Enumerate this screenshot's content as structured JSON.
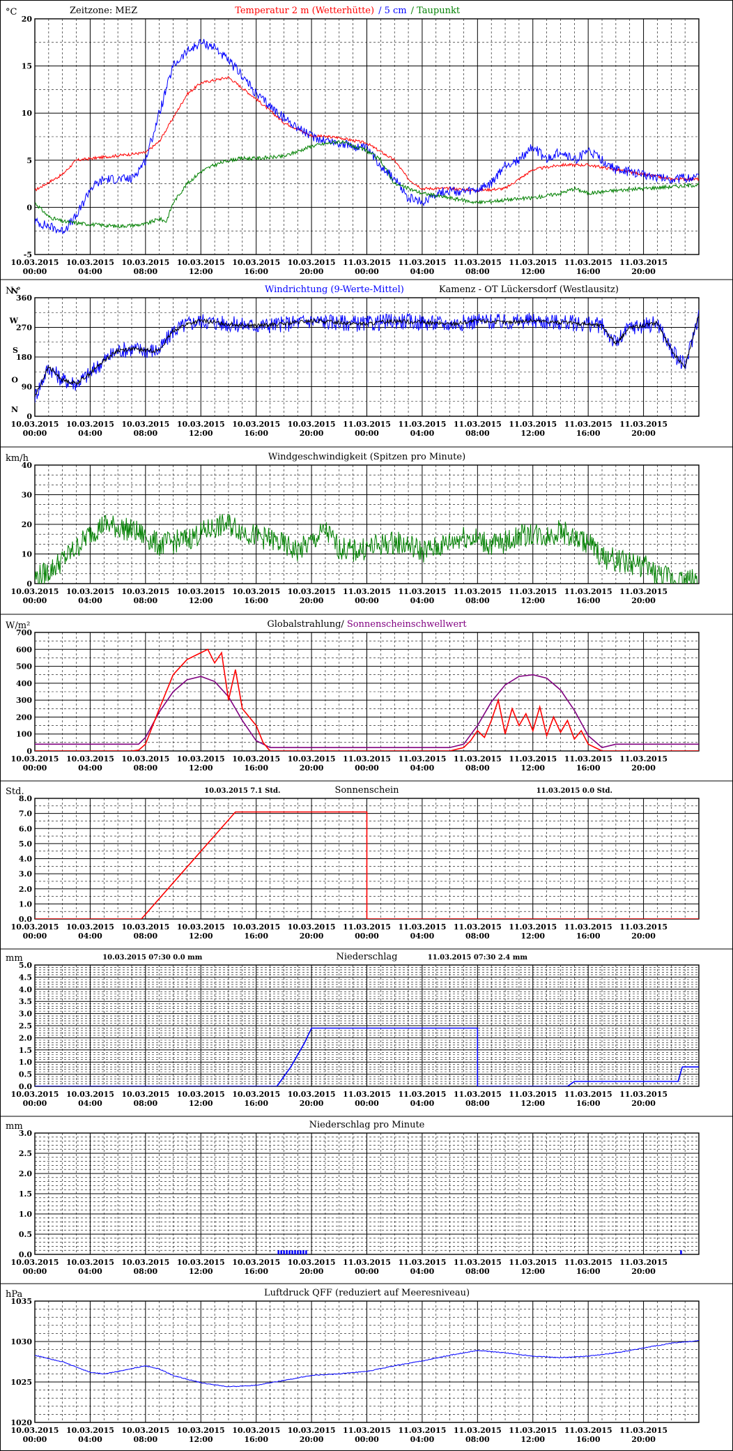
{
  "x_ticks": [
    {
      "date": "10.03.2015",
      "time": "00:00"
    },
    {
      "date": "10.03.2015",
      "time": "04:00"
    },
    {
      "date": "10.03.2015",
      "time": "08:00"
    },
    {
      "date": "10.03.2015",
      "time": "12:00"
    },
    {
      "date": "10.03.2015",
      "time": "16:00"
    },
    {
      "date": "10.03.2015",
      "time": "20:00"
    },
    {
      "date": "11.03.2015",
      "time": "00:00"
    },
    {
      "date": "11.03.2015",
      "time": "04:00"
    },
    {
      "date": "11.03.2015",
      "time": "08:00"
    },
    {
      "date": "11.03.2015",
      "time": "12:00"
    },
    {
      "date": "11.03.2015",
      "time": "16:00"
    },
    {
      "date": "11.03.2015",
      "time": "20:00"
    }
  ],
  "chart_data": [
    {
      "type": "line",
      "unit": "°C",
      "title_parts": [
        {
          "text": "Zeitzone: MEZ",
          "color": "#000000"
        },
        {
          "text": "Temperatur 2 m (Wetterhütte)",
          "color": "#ff0000"
        },
        {
          "text": "/  5 cm",
          "color": "#0000ff"
        },
        {
          "text": "/ Taupunkt",
          "color": "#008000"
        }
      ],
      "ylim": [
        -5,
        20
      ],
      "yticks": [
        "-5",
        "0",
        "5",
        "10",
        "15",
        "20"
      ],
      "minor_grid": 1,
      "series": [
        {
          "color": "#ff0000",
          "noise": 0.15,
          "x": [
            0,
            2,
            3,
            6,
            8,
            9,
            10,
            11,
            12,
            13,
            14,
            16,
            18,
            20,
            22,
            24,
            26,
            27,
            28,
            30,
            32,
            34,
            36,
            38,
            40,
            44,
            46,
            48
          ],
          "y": [
            1.8,
            3.5,
            5,
            5.5,
            5.8,
            7,
            9.5,
            12,
            13.2,
            13.5,
            13.8,
            11.5,
            9,
            7.6,
            7.4,
            6.8,
            5,
            3,
            2,
            2,
            1.8,
            2,
            4,
            4.5,
            4.5,
            3.5,
            3,
            3
          ]
        },
        {
          "color": "#0000ff",
          "noise": 0.5,
          "x": [
            0,
            1,
            2,
            3,
            4,
            5,
            7,
            8,
            9,
            10,
            11,
            12,
            13,
            14,
            15,
            16,
            18,
            20,
            22,
            24,
            25,
            26,
            27,
            28,
            29,
            30,
            31,
            32,
            33,
            34,
            35,
            36,
            37,
            38,
            39,
            40,
            41,
            42,
            44,
            46,
            48
          ],
          "y": [
            -1.5,
            -2,
            -2.5,
            -1,
            2,
            3,
            3,
            5,
            10,
            15,
            16.5,
            17.5,
            17,
            15.5,
            14,
            12,
            9.5,
            7.5,
            6.8,
            6.2,
            4.5,
            3,
            1,
            0.5,
            1.5,
            1.8,
            1.6,
            1.8,
            2.5,
            4.5,
            5,
            6.5,
            5,
            6,
            5,
            6,
            5,
            4,
            3.5,
            3,
            3.2
          ]
        },
        {
          "color": "#008000",
          "noise": 0.2,
          "x": [
            0,
            1,
            2,
            4,
            6,
            8,
            9,
            9.5,
            10,
            11,
            12,
            13,
            14,
            15,
            16,
            18,
            20,
            22,
            24,
            25,
            26,
            28,
            30,
            32,
            34,
            36,
            38,
            39,
            40,
            42,
            44,
            46,
            48
          ],
          "y": [
            0.5,
            -1,
            -1.5,
            -1.8,
            -2,
            -1.8,
            -1.2,
            -1.5,
            0.5,
            2.5,
            3.8,
            4.5,
            5,
            5.2,
            5.2,
            5.4,
            6.5,
            7,
            6,
            5,
            2.5,
            1.5,
            1,
            0.5,
            0.8,
            1,
            1.5,
            2,
            1.5,
            1.8,
            2,
            2.2,
            2.4
          ]
        }
      ]
    },
    {
      "type": "line",
      "unit": "N °",
      "title_parts": [
        {
          "text": "Windrichtung (9-Werte-Mittel)",
          "color": "#0000ff"
        },
        {
          "text": "Kamenz - OT Lückersdorf (Westlausitz)",
          "color": "#000000"
        }
      ],
      "ylim": [
        0,
        360
      ],
      "yticks": [
        "0",
        "90",
        "180",
        "270",
        "360"
      ],
      "side_labels": [
        "N",
        "O",
        "S",
        "W",
        "N"
      ],
      "minor_grid": 1,
      "series": [
        {
          "color": "#0000ff",
          "noise": 25,
          "x": [
            0,
            1,
            2,
            3,
            4,
            5,
            6,
            7,
            8,
            9,
            10,
            11,
            12,
            14,
            16,
            18,
            20,
            22,
            24,
            26,
            28,
            30,
            32,
            34,
            36,
            38,
            40,
            41,
            42,
            43,
            44,
            45,
            46,
            47,
            48
          ],
          "y": [
            60,
            150,
            110,
            100,
            130,
            170,
            200,
            205,
            200,
            200,
            260,
            280,
            290,
            280,
            275,
            280,
            290,
            285,
            280,
            290,
            285,
            280,
            290,
            285,
            290,
            285,
            280,
            275,
            220,
            270,
            275,
            285,
            200,
            150,
            310
          ]
        },
        {
          "color": "#000000",
          "noise": 6,
          "x": [
            0,
            1,
            2,
            3,
            4,
            5,
            6,
            7,
            8,
            9,
            10,
            11,
            12,
            14,
            16,
            18,
            20,
            22,
            24,
            26,
            28,
            30,
            32,
            34,
            36,
            38,
            40,
            41,
            42,
            43,
            44,
            45,
            46,
            47,
            48
          ],
          "y": [
            60,
            150,
            110,
            100,
            130,
            170,
            200,
            205,
            200,
            200,
            260,
            280,
            290,
            280,
            275,
            280,
            290,
            285,
            280,
            290,
            285,
            280,
            290,
            285,
            290,
            285,
            280,
            275,
            220,
            270,
            275,
            285,
            200,
            150,
            310
          ]
        }
      ]
    },
    {
      "type": "line",
      "unit": "km/h",
      "title_parts": [
        {
          "text": "Windgeschwindigkeit (Spitzen pro Minute)",
          "color": "#000000"
        }
      ],
      "ylim": [
        0,
        40
      ],
      "yticks": [
        "0",
        "10",
        "20",
        "30",
        "40"
      ],
      "minor_grid": 2,
      "series": [
        {
          "color": "#008000",
          "noise": 4,
          "x": [
            0,
            1,
            2,
            3,
            4,
            5,
            6,
            7,
            8,
            9,
            10,
            11,
            12,
            13,
            14,
            15,
            16,
            17,
            18,
            19,
            20,
            21,
            22,
            23,
            24,
            25,
            26,
            27,
            28,
            29,
            30,
            31,
            32,
            33,
            34,
            35,
            36,
            37,
            38,
            39,
            40,
            41,
            42,
            43,
            44,
            45,
            46,
            47,
            48
          ],
          "y": [
            2,
            4,
            8,
            12,
            17,
            20,
            19,
            18,
            16,
            13,
            14,
            15,
            17,
            19,
            20,
            18,
            16,
            15,
            13,
            11,
            14,
            18,
            12,
            11,
            12,
            13,
            14,
            13,
            11,
            12,
            14,
            16,
            15,
            13,
            14,
            16,
            17,
            16,
            18,
            15,
            14,
            9,
            8,
            7,
            6,
            3,
            2,
            1,
            2
          ]
        }
      ]
    },
    {
      "type": "line",
      "unit": "W/m²",
      "title_parts": [
        {
          "text": "Globalstrahlung/",
          "color": "#000000"
        },
        {
          "text": "Sonnenscheinschwellwert",
          "color": "#800080"
        }
      ],
      "ylim": [
        0,
        700
      ],
      "yticks": [
        "0",
        "100",
        "200",
        "300",
        "400",
        "500",
        "600",
        "700"
      ],
      "minor_grid": 1,
      "series": [
        {
          "color": "#800080",
          "noise": 0,
          "x": [
            0,
            7,
            7.5,
            8,
            9,
            10,
            11,
            12,
            13,
            14,
            15,
            16,
            17,
            18,
            30,
            31,
            32,
            33,
            34,
            35,
            36,
            37,
            38,
            39,
            40,
            41,
            42,
            48
          ],
          "y": [
            40,
            40,
            40,
            80,
            230,
            350,
            420,
            440,
            410,
            320,
            180,
            60,
            20,
            20,
            20,
            40,
            150,
            290,
            390,
            440,
            450,
            430,
            360,
            240,
            90,
            20,
            40,
            40
          ]
        },
        {
          "color": "#ff0000",
          "noise": 0,
          "x": [
            0,
            7,
            7.5,
            8,
            9,
            10,
            11,
            12,
            12.5,
            13,
            13.5,
            14,
            14.5,
            15,
            15.5,
            16,
            16.5,
            17,
            30,
            31,
            31.5,
            32,
            32.5,
            33,
            33.5,
            34,
            34.5,
            35,
            35.5,
            36,
            36.5,
            37,
            37.5,
            38,
            38.5,
            39,
            39.5,
            40,
            40.5,
            41,
            48
          ],
          "y": [
            0,
            0,
            5,
            40,
            250,
            450,
            540,
            580,
            600,
            520,
            580,
            300,
            480,
            250,
            200,
            150,
            50,
            0,
            0,
            20,
            60,
            120,
            80,
            180,
            300,
            100,
            250,
            150,
            220,
            120,
            260,
            90,
            200,
            110,
            180,
            70,
            120,
            40,
            20,
            0,
            0
          ]
        }
      ]
    },
    {
      "type": "line",
      "unit": "Std.",
      "title_parts": [
        {
          "text": "Sonnenschein",
          "color": "#000000"
        }
      ],
      "header": [
        {
          "text": "10.03.2015      7.1     Std.",
          "at": 15
        },
        {
          "text": "11.03.2015      0.0     Std.",
          "at": 39
        }
      ],
      "ylim": [
        0,
        8
      ],
      "yticks": [
        "0.0",
        "1.0",
        "2.0",
        "3.0",
        "4.0",
        "5.0",
        "6.0",
        "7.0",
        "8.0"
      ],
      "minor_grid": 1,
      "series": [
        {
          "color": "#ff0000",
          "noise": 0,
          "x": [
            0,
            7.7,
            14.5,
            24,
            24,
            48
          ],
          "y": [
            0,
            0,
            7.1,
            7.1,
            0,
            0
          ]
        }
      ]
    },
    {
      "type": "line",
      "unit": "mm",
      "title_parts": [
        {
          "text": "Niederschlag",
          "color": "#000000"
        }
      ],
      "header": [
        {
          "text": "10.03.2015 07:30       0.0    mm",
          "at": 8.5
        },
        {
          "text": "11.03.2015 07:30       2.4    mm",
          "at": 32
        }
      ],
      "ylim": [
        0,
        5
      ],
      "yticks": [
        "0.0",
        "0.5",
        "1.0",
        "1.5",
        "2.0",
        "2.5",
        "3.0",
        "3.5",
        "4.0",
        "4.5",
        "5.0"
      ],
      "minor_grid": 4,
      "series": [
        {
          "color": "#0000ff",
          "noise": 0,
          "x": [
            0,
            17.5,
            18.5,
            19.5,
            20,
            32,
            32,
            38.5,
            39,
            40.5,
            46.5,
            46.8,
            48
          ],
          "y": [
            0,
            0,
            0.8,
            1.8,
            2.4,
            2.4,
            0,
            0,
            0.2,
            0.2,
            0.2,
            0.8,
            0.8
          ]
        }
      ]
    },
    {
      "type": "bar",
      "unit": "mm",
      "title_parts": [
        {
          "text": "Niederschlag pro Minute",
          "color": "#000000"
        }
      ],
      "ylim": [
        0,
        3
      ],
      "yticks": [
        "0.0",
        "0.5",
        "1.0",
        "1.5",
        "2.0",
        "2.5",
        "3.0"
      ],
      "minor_grid": 4,
      "bars_color": "#0000ff",
      "bars_x": [
        17.6,
        17.8,
        18.0,
        18.2,
        18.4,
        18.6,
        18.8,
        19.0,
        19.2,
        19.4,
        19.6,
        46.7
      ],
      "bars_y": [
        0.1,
        0.1,
        0.1,
        0.1,
        0.1,
        0.1,
        0.1,
        0.1,
        0.1,
        0.1,
        0.1,
        0.1
      ]
    },
    {
      "type": "line",
      "unit": "hPa",
      "title_parts": [
        {
          "text": "Luftdruck QFF (reduziert auf Meeresniveau)",
          "color": "#000000"
        }
      ],
      "ylim": [
        1020,
        1035
      ],
      "yticks": [
        "1020",
        "1025",
        "1030",
        "1035"
      ],
      "minor_grid": 4,
      "series": [
        {
          "color": "#0000ff",
          "noise": 0.05,
          "x": [
            0,
            2,
            4,
            5,
            6,
            8,
            9,
            10,
            12,
            14,
            16,
            18,
            20,
            22,
            24,
            26,
            28,
            30,
            32,
            34,
            36,
            38,
            40,
            42,
            44,
            46,
            48
          ],
          "y": [
            1028.3,
            1027.5,
            1026.2,
            1026,
            1026.3,
            1027,
            1026.6,
            1025.8,
            1024.9,
            1024.4,
            1024.6,
            1025.2,
            1025.8,
            1026,
            1026.3,
            1027,
            1027.6,
            1028.3,
            1028.9,
            1028.6,
            1028.2,
            1028,
            1028.2,
            1028.6,
            1029.2,
            1029.8,
            1030.1
          ]
        }
      ]
    }
  ]
}
